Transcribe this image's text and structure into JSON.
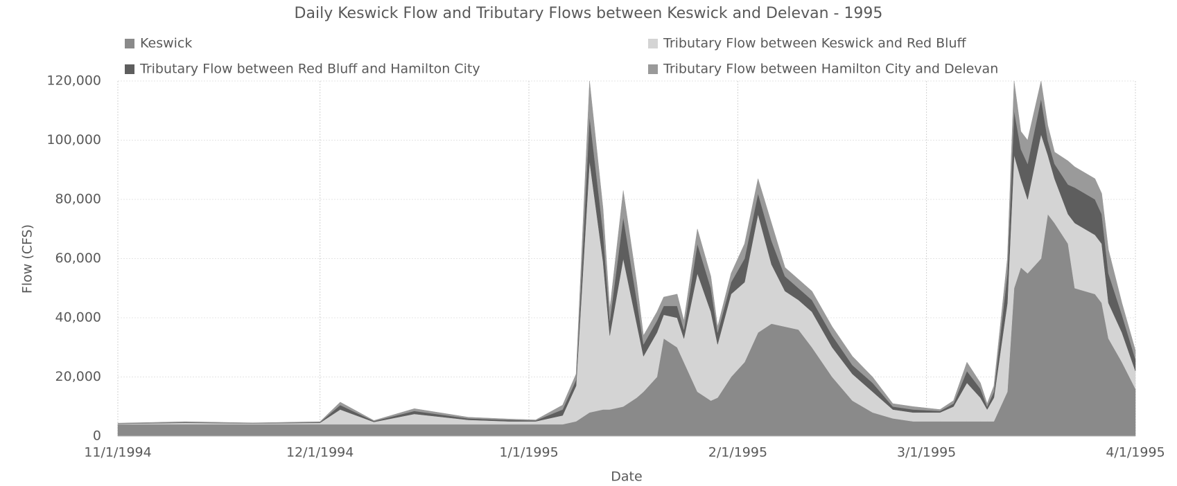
{
  "chart_data": {
    "type": "stacked-area",
    "title": "Daily Keswick Flow and Tributary Flows between Keswick and Delevan - 1995",
    "x_label": "Date",
    "y_label": "Flow (CFS)",
    "x": [
      "11/1/1994",
      "11/11/1994",
      "11/21/1994",
      "12/1/1994",
      "12/4/1994",
      "12/9/1994",
      "12/15/1994",
      "12/23/1994",
      "12/29/1994",
      "1/2/1995",
      "1/6/1995",
      "1/8/1995",
      "1/10/1995",
      "1/12/1995",
      "1/13/1995",
      "1/15/1995",
      "1/17/1995",
      "1/18/1995",
      "1/20/1995",
      "1/21/1995",
      "1/23/1995",
      "1/24/1995",
      "1/26/1995",
      "1/28/1995",
      "1/29/1995",
      "1/31/1995",
      "2/2/1995",
      "2/4/1995",
      "2/6/1995",
      "2/8/1995",
      "2/10/1995",
      "2/12/1995",
      "2/15/1995",
      "2/18/1995",
      "2/21/1995",
      "2/24/1995",
      "2/27/1995",
      "3/3/1995",
      "3/5/1995",
      "3/7/1995",
      "3/9/1995",
      "3/10/1995",
      "3/11/1995",
      "3/13/1995",
      "3/14/1995",
      "3/15/1995",
      "3/16/1995",
      "3/18/1995",
      "3/19/1995",
      "3/20/1995",
      "3/22/1995",
      "3/23/1995",
      "3/26/1995",
      "3/27/1995",
      "3/28/1995",
      "3/30/1995",
      "4/1/1995"
    ],
    "series": [
      {
        "name": "Keswick",
        "color": "#8a8a8a",
        "values": [
          4000,
          4000,
          4000,
          4000,
          4000,
          4000,
          4000,
          4000,
          4000,
          4000,
          4000,
          5000,
          8000,
          9000,
          9000,
          10000,
          13000,
          15000,
          20000,
          33000,
          30000,
          25000,
          15000,
          12000,
          13000,
          20000,
          25000,
          35000,
          38000,
          37000,
          36000,
          30000,
          20000,
          12000,
          8000,
          6000,
          5000,
          5000,
          5000,
          5000,
          5000,
          5000,
          5000,
          15000,
          50000,
          57000,
          55000,
          60000,
          75000,
          72000,
          65000,
          50000,
          48000,
          45000,
          33000,
          25000,
          16000
        ]
      },
      {
        "name": "Tributary Flow between Keswick and Red Bluff",
        "color": "#d4d4d4",
        "values": [
          200,
          500,
          300,
          500,
          5000,
          800,
          3500,
          1500,
          1000,
          1000,
          3000,
          12000,
          85000,
          50000,
          25000,
          50000,
          25000,
          12000,
          15000,
          8000,
          10000,
          8000,
          40000,
          30000,
          18000,
          28000,
          27000,
          40000,
          20000,
          12000,
          10000,
          12000,
          10000,
          9000,
          7000,
          3000,
          3000,
          3000,
          5000,
          13000,
          8000,
          4000,
          8000,
          30000,
          45000,
          30000,
          25000,
          42000,
          20000,
          15000,
          10000,
          22000,
          20000,
          20000,
          12000,
          10000,
          6000
        ]
      },
      {
        "name": "Tributary Flow between Red Bluff and Hamilton City",
        "color": "#5e5e5e",
        "values": [
          100,
          200,
          100,
          200,
          1500,
          300,
          1000,
          500,
          500,
          300,
          2000,
          2000,
          15000,
          10000,
          5000,
          14000,
          8000,
          4000,
          4000,
          3000,
          4000,
          3000,
          10000,
          8000,
          4000,
          4000,
          8000,
          7000,
          8000,
          5000,
          4000,
          4000,
          4000,
          3000,
          3000,
          1000,
          1000,
          500,
          1000,
          4000,
          3000,
          1000,
          2000,
          10000,
          15000,
          10000,
          12000,
          12000,
          5000,
          5000,
          10000,
          12000,
          12000,
          10000,
          10000,
          6000,
          4000
        ]
      },
      {
        "name": "Tributary Flow between Hamilton City and Delevan",
        "color": "#9a9a9a",
        "values": [
          100,
          200,
          100,
          200,
          1000,
          200,
          800,
          400,
          300,
          200,
          1500,
          2000,
          12000,
          8000,
          4000,
          9000,
          6000,
          3000,
          3000,
          3000,
          4000,
          3000,
          5000,
          4000,
          2000,
          3000,
          5000,
          5000,
          6000,
          3000,
          3000,
          3000,
          3000,
          3000,
          2000,
          1000,
          1000,
          500,
          1000,
          3000,
          2000,
          1000,
          2000,
          5000,
          10000,
          6000,
          8000,
          6000,
          5000,
          4000,
          8000,
          7000,
          7000,
          7000,
          8000,
          4000,
          3000
        ]
      }
    ],
    "xlim": [
      "11/1/1994",
      "4/1/1995"
    ],
    "xticks": [
      "11/1/1994",
      "12/1/1994",
      "1/1/1995",
      "2/1/1995",
      "3/1/1995",
      "4/1/1995"
    ],
    "ylim": [
      0,
      120000
    ],
    "yticks": [
      0,
      {
        "value": 20000,
        "label": "20,000"
      },
      {
        "value": 40000,
        "label": "40,000"
      },
      {
        "value": 60000,
        "label": "60,000"
      },
      {
        "value": 80000,
        "label": "80,000"
      },
      {
        "value": 100000,
        "label": "100,000"
      },
      {
        "value": 120000,
        "label": "120,000"
      }
    ],
    "grid": true,
    "legend": "top"
  }
}
